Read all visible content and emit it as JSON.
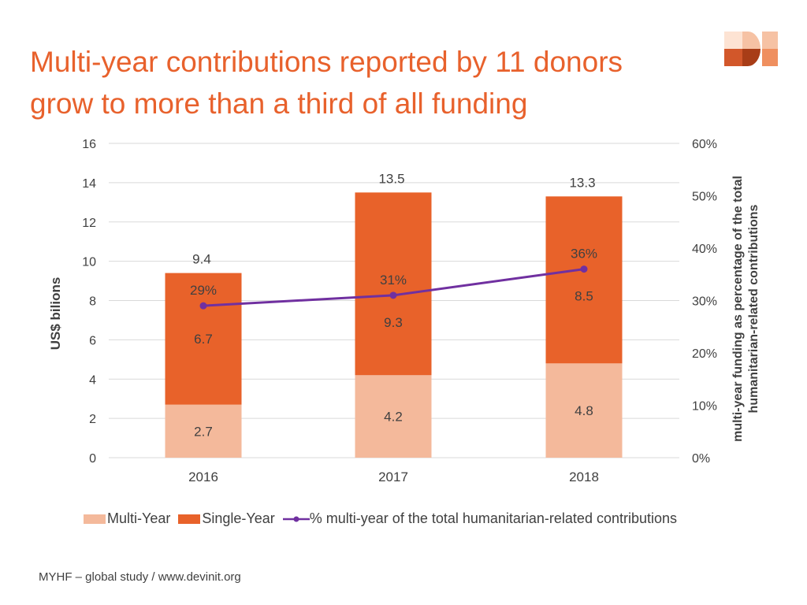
{
  "title_line1": "Multi-year contributions reported by 11 donors",
  "title_line2": "grow to more than a third of all funding",
  "logo_text": "DI",
  "footer": "MYHF – global study / www.devinit.org",
  "colors": {
    "title": "#e8612c",
    "multi_year": "#f4b99b",
    "single_year": "#e8622a",
    "line": "#7030a0",
    "grid": "#d9d9d9",
    "text": "#404040"
  },
  "chart_data": {
    "type": "bar",
    "stacked": true,
    "categories": [
      "2016",
      "2017",
      "2018"
    ],
    "series": [
      {
        "name": "Multi-Year",
        "values": [
          2.7,
          4.2,
          4.8
        ],
        "labels": [
          "2.7",
          "4.2",
          "4.8"
        ]
      },
      {
        "name": "Single-Year",
        "values": [
          6.7,
          9.3,
          8.5
        ],
        "labels": [
          "6.7",
          "9.3",
          "8.5"
        ]
      }
    ],
    "totals": [
      "9.4",
      "13.5",
      "13.3"
    ],
    "line_series": {
      "name": "% multi-year of the total humanitarian-related contributions",
      "axis": "right",
      "values": [
        29,
        31,
        36
      ],
      "labels": [
        "29%",
        "31%",
        "36%"
      ]
    },
    "ylabel": "US$ bilions",
    "ylabel_right_line1": "multi-year funding as percentage of the total",
    "ylabel_right_line2": "humanitarian-related contributions",
    "ylim": [
      0,
      16
    ],
    "yticks": [
      "0",
      "2",
      "4",
      "6",
      "8",
      "10",
      "12",
      "14",
      "16"
    ],
    "ylim_right": [
      0,
      60
    ],
    "yticks_right": [
      "0%",
      "10%",
      "20%",
      "30%",
      "40%",
      "50%",
      "60%"
    ],
    "grid": true,
    "legend_position": "bottom"
  }
}
